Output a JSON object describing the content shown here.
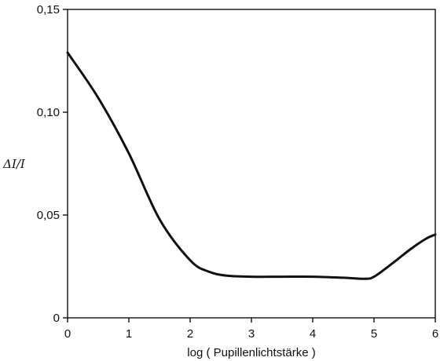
{
  "chart_data": {
    "type": "line",
    "title": "",
    "xlabel": "log ( Pupillenlichtstärke )",
    "ylabel": "ΔI/I",
    "xlim": [
      0,
      6
    ],
    "ylim": [
      0,
      0.15
    ],
    "xticks": [
      0,
      1,
      2,
      3,
      4,
      5,
      6
    ],
    "xtick_labels": [
      "0",
      "1",
      "2",
      "3",
      "4",
      "5",
      "6"
    ],
    "yticks": [
      0,
      0.05,
      0.1,
      0.15
    ],
    "ytick_labels": [
      "0",
      "0,05",
      "0,10",
      "0,15"
    ],
    "grid": false,
    "series": [
      {
        "x": [
          0,
          0.5,
          1.0,
          1.5,
          2.0,
          2.3,
          2.6,
          3.0,
          3.5,
          4.0,
          4.5,
          4.85,
          5.0,
          5.3,
          5.6,
          5.85,
          6.0
        ],
        "y": [
          0.129,
          0.107,
          0.08,
          0.048,
          0.028,
          0.0225,
          0.0205,
          0.02,
          0.02,
          0.02,
          0.0195,
          0.019,
          0.02,
          0.0265,
          0.0335,
          0.0385,
          0.0405
        ]
      }
    ]
  },
  "style": {
    "line_color": "#111111",
    "axis_color": "#111111"
  }
}
